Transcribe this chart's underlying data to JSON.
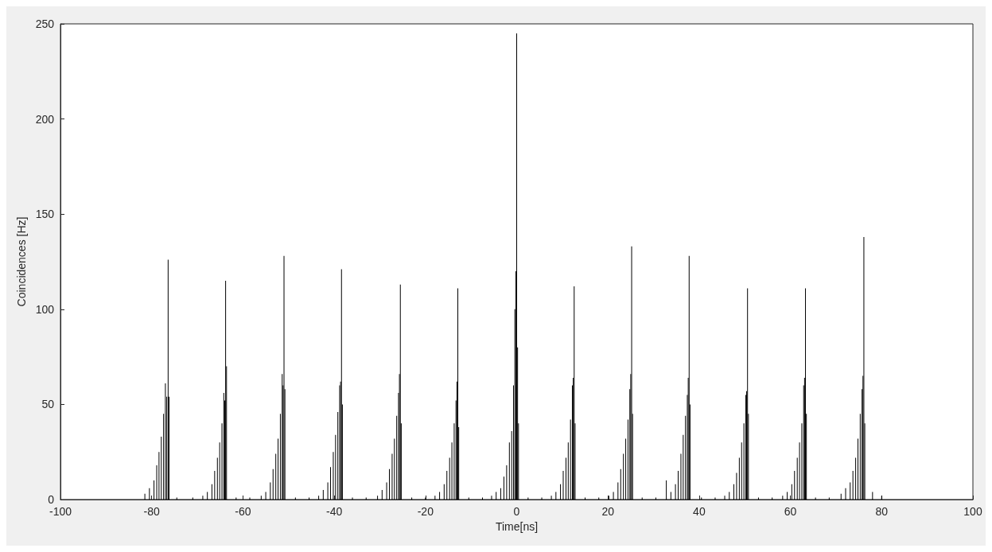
{
  "chart_data": {
    "type": "bar",
    "xlabel": "Time[ns]",
    "ylabel": "Coincidences [Hz]",
    "color": "#000000",
    "x": [
      -81.5,
      -80.5,
      -79.5,
      -78.9,
      -78.4,
      -77.9,
      -77.4,
      -77.0,
      -76.7,
      -76.4,
      -76.2,
      -74.5,
      -71,
      -68.8,
      -67.8,
      -66.8,
      -66.2,
      -65.6,
      -65.1,
      -64.6,
      -64.2,
      -64.0,
      -63.8,
      -63.6,
      -61.5,
      -58.5,
      -56,
      -55,
      -54,
      -53.4,
      -52.8,
      -52.3,
      -51.8,
      -51.4,
      -51.2,
      -51.0,
      -50.8,
      -48.5,
      -45.5,
      -43.4,
      -42.4,
      -41.4,
      -40.8,
      -40.2,
      -39.7,
      -39.2,
      -38.8,
      -38.6,
      -38.4,
      -38.2,
      -36,
      -33,
      -30.5,
      -29.5,
      -28.5,
      -27.9,
      -27.3,
      -26.8,
      -26.3,
      -25.9,
      -25.7,
      -25.5,
      -25.3,
      -23,
      -20,
      -17.9,
      -16.9,
      -15.9,
      -15.3,
      -14.7,
      -14.2,
      -13.7,
      -13.3,
      -13.1,
      -12.9,
      -12.7,
      -10.5,
      -7.5,
      -5.5,
      -4.5,
      -3.5,
      -2.8,
      -2.2,
      -1.6,
      -1.1,
      -0.7,
      -0.4,
      -0.2,
      0,
      0.2,
      0.4,
      2.5,
      5.5,
      7.6,
      8.6,
      9.6,
      10.2,
      10.8,
      11.3,
      11.8,
      12.2,
      12.4,
      12.6,
      12.8,
      15,
      18,
      20.2,
      21.2,
      22.2,
      22.8,
      23.4,
      23.9,
      24.4,
      24.8,
      25.0,
      25.2,
      25.4,
      27.5,
      30.5,
      32.8,
      33.8,
      34.8,
      35.4,
      36.0,
      36.5,
      37.0,
      37.4,
      37.6,
      37.8,
      38.0,
      40.5,
      43.5,
      45.6,
      46.6,
      47.6,
      48.2,
      48.8,
      49.3,
      49.8,
      50.2,
      50.4,
      50.6,
      50.8,
      53,
      56,
      58.3,
      59.3,
      60.3,
      60.9,
      61.5,
      62.0,
      62.5,
      62.9,
      63.1,
      63.3,
      63.5,
      65.5,
      68.5,
      71.1,
      72.1,
      73.1,
      73.7,
      74.3,
      74.8,
      75.3,
      75.7,
      75.9,
      76.1,
      76.3,
      78,
      80
    ],
    "values": [
      3,
      6,
      10,
      18,
      25,
      33,
      45,
      61,
      54,
      126,
      54,
      1,
      1,
      2,
      4,
      8,
      15,
      22,
      30,
      40,
      56,
      52,
      115,
      70,
      1,
      1,
      2,
      4,
      9,
      16,
      24,
      32,
      45,
      66,
      60,
      128,
      58,
      1,
      1,
      2,
      5,
      9,
      17,
      25,
      34,
      46,
      60,
      62,
      121,
      50,
      1,
      1,
      2,
      5,
      9,
      16,
      24,
      32,
      44,
      56,
      66,
      113,
      40,
      1,
      1,
      2,
      4,
      8,
      15,
      22,
      30,
      40,
      52,
      62,
      111,
      38,
      1,
      1,
      2,
      4,
      6,
      12,
      18,
      30,
      36,
      60,
      100,
      120,
      245,
      80,
      40,
      1,
      1,
      2,
      4,
      8,
      15,
      22,
      30,
      42,
      60,
      64,
      112,
      40,
      1,
      1,
      2,
      4,
      9,
      16,
      24,
      32,
      42,
      58,
      66,
      133,
      45,
      1,
      1,
      10,
      4,
      8,
      15,
      24,
      34,
      44,
      55,
      64,
      128,
      50,
      1,
      1,
      2,
      4,
      8,
      14,
      22,
      30,
      40,
      55,
      57,
      111,
      45,
      1,
      1,
      2,
      4,
      8,
      15,
      22,
      30,
      40,
      60,
      64,
      111,
      45,
      1,
      1,
      3,
      6,
      9,
      15,
      22,
      32,
      45,
      58,
      65,
      138,
      40,
      4,
      2
    ],
    "xlim": [
      -100,
      100
    ],
    "xticks": [
      -100,
      -80,
      -60,
      -40,
      -20,
      0,
      20,
      40,
      60,
      80,
      100
    ],
    "ylim": [
      0,
      250
    ],
    "yticks": [
      0,
      50,
      100,
      150,
      200,
      250
    ],
    "grid": false
  }
}
